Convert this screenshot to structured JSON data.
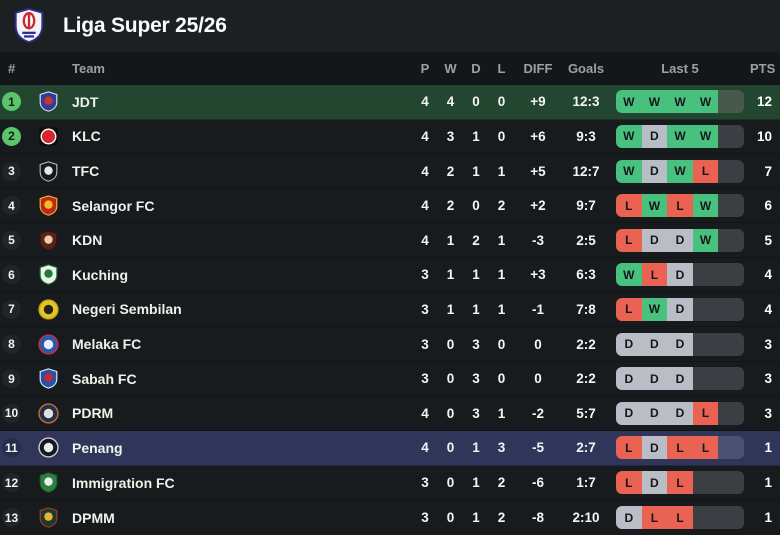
{
  "header": {
    "title": "Liga Super 25/26"
  },
  "columns": {
    "pos": "#",
    "team": "Team",
    "played": "P",
    "wins": "W",
    "draws": "D",
    "losses": "L",
    "diff": "DIFF",
    "goals": "Goals",
    "last5": "Last 5",
    "pts": "PTS"
  },
  "colors": {
    "page_bg": "#17191c",
    "titlebar_bg": "#1d2023",
    "thead_bg": "#14171a",
    "row_bg": "#181b1e",
    "row_leader_bg": "#234630",
    "row_highlight_bg": "#30365a",
    "col_header_text": "#9ba1a7",
    "win": "#48c17e",
    "draw": "#b9bdc6",
    "loss": "#ea6252",
    "slot_empty": "#3b3f43",
    "slot_empty_leader": "#47594b",
    "slot_empty_highlight": "#4c5071",
    "badge_promotion": "#5bc46d",
    "badge_default": "#212529",
    "badge_highlight": "#272c4b"
  },
  "league_logo": {
    "icon": "liga-super-crest",
    "colors": [
      "#f4f4f8",
      "#c9292d",
      "#2c2f8f"
    ]
  },
  "rows": [
    {
      "pos": "1",
      "team": "JDT",
      "p": "4",
      "w": "4",
      "d": "0",
      "l": "0",
      "diff": "+9",
      "goals": "12:3",
      "last5": [
        "W",
        "W",
        "W",
        "W"
      ],
      "pts": "12",
      "row_style": "leader",
      "badge_style": "promotion",
      "logo": {
        "shape": "shield",
        "colors": [
          "#343a9c",
          "#c0392f",
          "#dfe2f2"
        ]
      }
    },
    {
      "pos": "2",
      "team": "KLC",
      "p": "4",
      "w": "3",
      "d": "1",
      "l": "0",
      "diff": "+6",
      "goals": "9:3",
      "last5": [
        "W",
        "D",
        "W",
        "W"
      ],
      "pts": "10",
      "row_style": "",
      "badge_style": "promotion",
      "logo": {
        "shape": "square",
        "colors": [
          "#0c0c0e",
          "#d8262c",
          "#ffffff"
        ]
      }
    },
    {
      "pos": "3",
      "team": "TFC",
      "p": "4",
      "w": "2",
      "d": "1",
      "l": "1",
      "diff": "+5",
      "goals": "12:7",
      "last5": [
        "W",
        "D",
        "W",
        "L"
      ],
      "pts": "7",
      "row_style": "",
      "badge_style": "",
      "logo": {
        "shape": "shield",
        "colors": [
          "#17171c",
          "#e8e8e8",
          "#b9b9bd"
        ]
      }
    },
    {
      "pos": "4",
      "team": "Selangor FC",
      "p": "4",
      "w": "2",
      "d": "0",
      "l": "2",
      "diff": "+2",
      "goals": "9:7",
      "last5": [
        "L",
        "W",
        "L",
        "W"
      ],
      "pts": "6",
      "row_style": "",
      "badge_style": "",
      "logo": {
        "shape": "shield",
        "colors": [
          "#c0261d",
          "#f0c01e",
          "#f0c01e"
        ]
      }
    },
    {
      "pos": "5",
      "team": "KDN",
      "p": "4",
      "w": "1",
      "d": "2",
      "l": "1",
      "diff": "-3",
      "goals": "2:5",
      "last5": [
        "L",
        "D",
        "D",
        "W"
      ],
      "pts": "5",
      "row_style": "",
      "badge_style": "",
      "logo": {
        "shape": "shield",
        "colors": [
          "#5a211c",
          "#e5d3a4",
          "#2c1512"
        ]
      }
    },
    {
      "pos": "6",
      "team": "Kuching",
      "p": "3",
      "w": "1",
      "d": "1",
      "l": "1",
      "diff": "+3",
      "goals": "6:3",
      "last5": [
        "W",
        "L",
        "D"
      ],
      "pts": "4",
      "row_style": "",
      "badge_style": "",
      "logo": {
        "shape": "shield",
        "colors": [
          "#edf1ea",
          "#1e7d39",
          "#1e7d39"
        ]
      }
    },
    {
      "pos": "7",
      "team": "Negeri Sembilan",
      "p": "3",
      "w": "1",
      "d": "1",
      "l": "1",
      "diff": "-1",
      "goals": "7:8",
      "last5": [
        "L",
        "W",
        "D"
      ],
      "pts": "4",
      "row_style": "",
      "badge_style": "",
      "logo": {
        "shape": "circle",
        "colors": [
          "#e5c524",
          "#25211c",
          "#bfa51f"
        ]
      }
    },
    {
      "pos": "8",
      "team": "Melaka FC",
      "p": "3",
      "w": "0",
      "d": "3",
      "l": "0",
      "diff": "0",
      "goals": "2:2",
      "last5": [
        "D",
        "D",
        "D"
      ],
      "pts": "3",
      "row_style": "",
      "badge_style": "",
      "logo": {
        "shape": "circle",
        "colors": [
          "#2a59ab",
          "#e8edf5",
          "#cf2b36"
        ]
      }
    },
    {
      "pos": "9",
      "team": "Sabah FC",
      "p": "3",
      "w": "0",
      "d": "3",
      "l": "0",
      "diff": "0",
      "goals": "2:2",
      "last5": [
        "D",
        "D",
        "D"
      ],
      "pts": "3",
      "row_style": "",
      "badge_style": "",
      "logo": {
        "shape": "shield",
        "colors": [
          "#2553a6",
          "#cf2433",
          "#e9edf4"
        ]
      }
    },
    {
      "pos": "10",
      "team": "PDRM",
      "p": "4",
      "w": "0",
      "d": "3",
      "l": "1",
      "diff": "-2",
      "goals": "5:7",
      "last5": [
        "D",
        "D",
        "D",
        "L"
      ],
      "pts": "3",
      "row_style": "",
      "badge_style": "",
      "logo": {
        "shape": "circle",
        "colors": [
          "#20304f",
          "#e6e1d3",
          "#cf6a2b"
        ]
      }
    },
    {
      "pos": "11",
      "team": "Penang",
      "p": "4",
      "w": "0",
      "d": "1",
      "l": "3",
      "diff": "-5",
      "goals": "2:7",
      "last5": [
        "L",
        "D",
        "L",
        "L"
      ],
      "pts": "1",
      "row_style": "highlight",
      "badge_style": "",
      "logo": {
        "shape": "circle",
        "colors": [
          "#14181c",
          "#e7ebee",
          "#c8cdd2"
        ]
      }
    },
    {
      "pos": "12",
      "team": "Immigration FC",
      "p": "3",
      "w": "0",
      "d": "1",
      "l": "2",
      "diff": "-6",
      "goals": "1:7",
      "last5": [
        "L",
        "D",
        "L"
      ],
      "pts": "1",
      "row_style": "",
      "badge_style": "",
      "logo": {
        "shape": "shield",
        "colors": [
          "#2c7e3e",
          "#e9efe5",
          "#1d5e2c"
        ]
      }
    },
    {
      "pos": "13",
      "team": "DPMM",
      "p": "3",
      "w": "0",
      "d": "1",
      "l": "2",
      "diff": "-8",
      "goals": "2:10",
      "last5": [
        "D",
        "L",
        "L"
      ],
      "pts": "1",
      "row_style": "",
      "badge_style": "",
      "logo": {
        "shape": "shield",
        "colors": [
          "#1b3a2a",
          "#e2b23a",
          "#b5332c"
        ]
      }
    }
  ]
}
